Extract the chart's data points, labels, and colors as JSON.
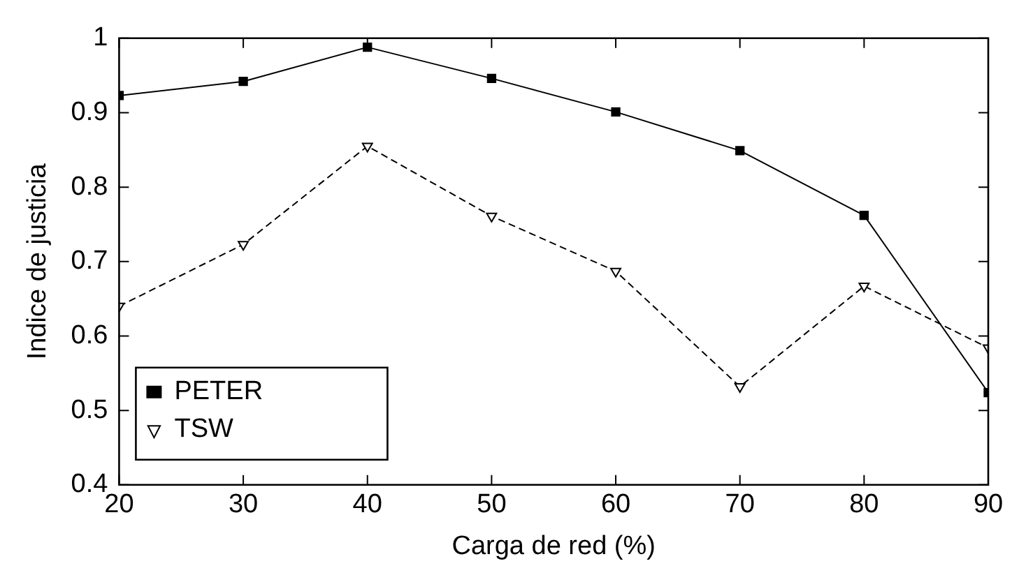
{
  "chart_data": {
    "type": "line",
    "xlabel": "Carga de red (%)",
    "ylabel": "Indice de justicia",
    "x": [
      20,
      30,
      40,
      50,
      60,
      70,
      80,
      90
    ],
    "series": [
      {
        "name": "PETER",
        "color": "#000000",
        "marker": "square",
        "line_style": "solid",
        "values": [
          0.923,
          0.942,
          0.988,
          0.946,
          0.901,
          0.849,
          0.762,
          0.524
        ]
      },
      {
        "name": "TSW",
        "color": "#000000",
        "marker": "triangle",
        "line_style": "dashed",
        "values": [
          0.64,
          0.723,
          0.855,
          0.761,
          0.687,
          0.532,
          0.667,
          0.584
        ]
      }
    ],
    "xlim": [
      20,
      90
    ],
    "xticks": [
      20,
      30,
      40,
      50,
      60,
      70,
      80,
      90
    ],
    "ylim": [
      0.4,
      1
    ],
    "yticks": [
      0.4,
      0.5,
      0.6,
      0.7,
      0.8,
      0.9,
      1
    ],
    "grid": false,
    "legend": "bottom left"
  }
}
